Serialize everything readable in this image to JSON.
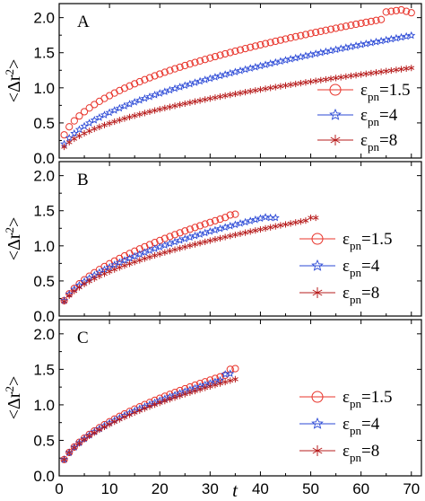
{
  "figure": {
    "xlabel": "t",
    "ylabel_text": "<Δr",
    "ylabel_sup": "2",
    "ylabel_close": ">"
  },
  "chart_data": [
    {
      "panel": "A",
      "type": "scatter",
      "xlabel": "t",
      "ylabel": "<Δr²>",
      "xlim": [
        0,
        72
      ],
      "ylim": [
        0,
        2.2
      ],
      "xticks": [
        0,
        10,
        20,
        30,
        40,
        50,
        60,
        70
      ],
      "yticks": [
        0.0,
        0.5,
        1.0,
        1.5,
        2.0
      ],
      "legend_position": "right",
      "series": [
        {
          "name": "ε_pn=1.5",
          "marker": "circle",
          "color": "#e8342b",
          "t_max": 70,
          "coef": 0.33,
          "exp": 0.43,
          "end_values": [
            [
              65,
              2.08
            ],
            [
              66,
              2.09
            ],
            [
              67,
              2.1
            ],
            [
              68,
              2.11
            ],
            [
              69,
              2.09
            ],
            [
              70,
              2.07
            ]
          ]
        },
        {
          "name": "ε_pn=4",
          "marker": "star",
          "color": "#2b49d6",
          "t_max": 70,
          "coef": 0.2,
          "exp": 0.51,
          "end_values": []
        },
        {
          "name": "ε_pn=8",
          "marker": "asterisk",
          "color": "#b71c1c",
          "t_max": 70,
          "coef": 0.16,
          "exp": 0.49,
          "end_values": []
        }
      ]
    },
    {
      "panel": "B",
      "type": "scatter",
      "xlabel": "t",
      "ylabel": "<Δr²>",
      "xlim": [
        0,
        72
      ],
      "ylim": [
        0,
        2.2
      ],
      "xticks": [
        0,
        10,
        20,
        30,
        40,
        50,
        60,
        70
      ],
      "yticks": [
        0.0,
        0.5,
        1.0,
        1.5,
        2.0
      ],
      "legend_position": "right",
      "series": [
        {
          "name": "ε_pn=1.5",
          "marker": "circle",
          "color": "#e8342b",
          "t_max": 35,
          "coef": 0.22,
          "exp": 0.53,
          "end_values": [
            [
              34,
              1.44
            ],
            [
              35,
              1.45
            ]
          ]
        },
        {
          "name": "ε_pn=4",
          "marker": "star",
          "color": "#2b49d6",
          "t_max": 43,
          "coef": 0.22,
          "exp": 0.5,
          "end_values": [
            [
              42,
              1.4
            ],
            [
              43,
              1.4
            ]
          ]
        },
        {
          "name": "ε_pn=8",
          "marker": "asterisk",
          "color": "#b71c1c",
          "t_max": 51,
          "coef": 0.21,
          "exp": 0.48,
          "end_values": [
            [
              50,
              1.4
            ],
            [
              51,
              1.4
            ]
          ]
        }
      ]
    },
    {
      "panel": "C",
      "type": "scatter",
      "xlabel": "t",
      "ylabel": "<Δr²>",
      "xlim": [
        0,
        72
      ],
      "ylim": [
        0,
        2.2
      ],
      "xticks": [
        0,
        10,
        20,
        30,
        40,
        50,
        60,
        70
      ],
      "yticks": [
        0.0,
        0.5,
        1.0,
        1.5,
        2.0
      ],
      "legend_position": "right",
      "series": [
        {
          "name": "ε_pn=1.5",
          "marker": "circle",
          "color": "#e8342b",
          "t_max": 35,
          "coef": 0.23,
          "exp": 0.52,
          "end_values": [
            [
              34,
              1.5
            ],
            [
              35,
              1.51
            ]
          ]
        },
        {
          "name": "ε_pn=4",
          "marker": "star",
          "color": "#2b49d6",
          "t_max": 34,
          "coef": 0.23,
          "exp": 0.51,
          "end_values": [
            [
              33,
              1.43
            ],
            [
              34,
              1.44
            ]
          ]
        },
        {
          "name": "ε_pn=8",
          "marker": "asterisk",
          "color": "#b71c1c",
          "t_max": 35,
          "coef": 0.23,
          "exp": 0.5,
          "end_values": []
        }
      ]
    }
  ],
  "legend": [
    {
      "symbol": "ε",
      "sub": "pn",
      "rest": "=1.5"
    },
    {
      "symbol": "ε",
      "sub": "pn",
      "rest": "=4"
    },
    {
      "symbol": "ε",
      "sub": "pn",
      "rest": "=8"
    }
  ]
}
